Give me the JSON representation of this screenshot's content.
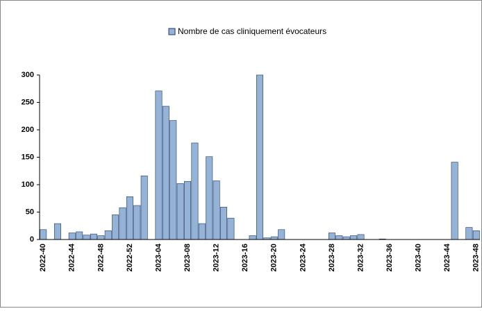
{
  "chart_data": {
    "type": "bar",
    "series": [
      {
        "name": "Nombre de cas cliniquement évocateurs",
        "color": "#95b3d7",
        "values": [
          18,
          0,
          29,
          0,
          12,
          14,
          8,
          10,
          7,
          16,
          45,
          58,
          78,
          62,
          116,
          0,
          271,
          243,
          217,
          102,
          106,
          176,
          29,
          151,
          107,
          59,
          39,
          0,
          0,
          7,
          300,
          3,
          5,
          18,
          0,
          0,
          0,
          0,
          0,
          0,
          12,
          7,
          5,
          7,
          9,
          0,
          0,
          1,
          0,
          0,
          0,
          0,
          0,
          0,
          0,
          0,
          0,
          141,
          0,
          22,
          16
        ]
      }
    ],
    "categories": [
      "2022-40",
      null,
      null,
      null,
      "2022-44",
      null,
      null,
      null,
      "2022-48",
      null,
      null,
      null,
      "2022-52",
      null,
      null,
      null,
      "2023-04",
      null,
      null,
      null,
      "2023-08",
      null,
      null,
      null,
      "2023-12",
      null,
      null,
      null,
      "2023-16",
      null,
      null,
      null,
      "2023-20",
      null,
      null,
      null,
      "2023-24",
      null,
      null,
      null,
      "2023-28",
      null,
      null,
      null,
      "2023-32",
      null,
      null,
      null,
      "2023-36",
      null,
      null,
      null,
      "2023-40",
      null,
      null,
      null,
      "2023-44",
      null,
      null,
      null,
      "2023-48"
    ],
    "ylim": [
      0,
      300
    ],
    "yticks": [
      0,
      50,
      100,
      150,
      200,
      250,
      300
    ],
    "grid": false,
    "legend": "top"
  }
}
